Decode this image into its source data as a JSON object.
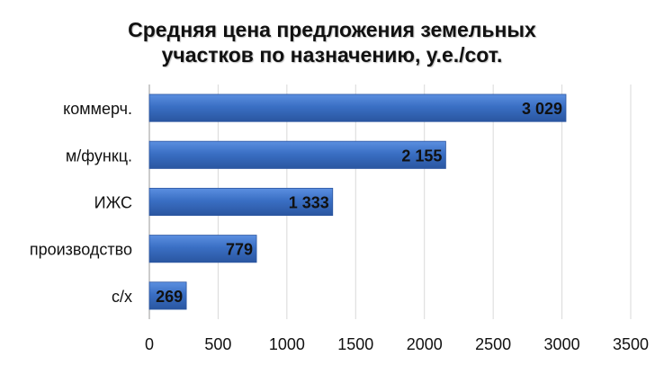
{
  "chart_data": {
    "type": "bar",
    "orientation": "horizontal",
    "title": [
      "Средняя цена предложения земельных",
      "участков по назначению, у.е./сот."
    ],
    "categories": [
      "коммерч.",
      "м/функц.",
      "ИЖС",
      "производство",
      "с/х"
    ],
    "values": [
      3029,
      2155,
      1333,
      779,
      269
    ],
    "value_labels": [
      "3 029",
      "2 155",
      "1 333",
      "779",
      "269"
    ],
    "xlim": [
      0,
      3500
    ],
    "xticks": [
      "0",
      "500",
      "1000",
      "1500",
      "2000",
      "2500",
      "3000",
      "3500"
    ],
    "grid": true,
    "legend": "none",
    "bar_color": "#3f74c4"
  }
}
